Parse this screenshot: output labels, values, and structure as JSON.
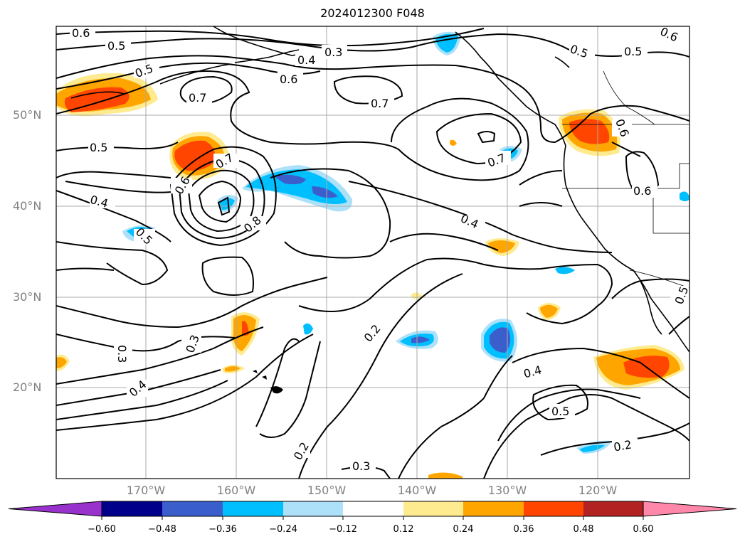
{
  "title": "2024012300 F048",
  "lat_labels": [
    "50°N",
    "40°N",
    "30°N",
    "20°N"
  ],
  "lon_labels": [
    "170°W",
    "160°W",
    "150°W",
    "140°W",
    "130°W",
    "120°W"
  ],
  "contour_labels": {
    "c1": "0.6",
    "c2": "0.5",
    "c3": "0.3",
    "c4": "0.4",
    "c5": "0.5",
    "c6": "0.5",
    "c7": "0.6",
    "c8": "0.7",
    "c9": "0.6",
    "c10": "0.7",
    "c11": "0.7",
    "c12": "0.5",
    "c13": "0.7",
    "c14": "0.6",
    "c15": "0.4",
    "c16": "0.8",
    "c17": "0.5",
    "c18": "0.4",
    "c19": "0.6",
    "c20": "0.6",
    "c21": "0.3",
    "c22": "0.3",
    "c23": "0.4",
    "c24": "0.2",
    "c25": "0.4",
    "c26": "0.5",
    "c27": "0.2",
    "c28": "0.2",
    "c29": "0.3",
    "c30": "0.5"
  },
  "colorbar": {
    "ticks": [
      "−0.60",
      "−0.48",
      "−0.36",
      "−0.24",
      "−0.12",
      "0.12",
      "0.24",
      "0.36",
      "0.48",
      "0.60"
    ],
    "colors": [
      "#9932CC",
      "#00008B",
      "#3A5FCD",
      "#00BFFF",
      "#ADE1FA",
      "#FFFFFF",
      "#FFEB8F",
      "#FFA500",
      "#FF4500",
      "#B22222",
      "#FF88AA",
      "#FF88AA"
    ]
  }
}
